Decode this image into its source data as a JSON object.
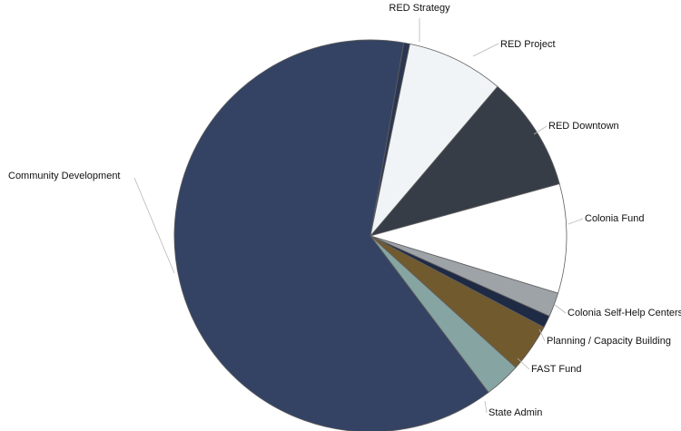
{
  "chart_data": {
    "type": "pie",
    "title": "",
    "legend": "none",
    "slices": [
      {
        "label": "RED Strategy",
        "value": 0.5,
        "color": "#2c3650"
      },
      {
        "label": "RED Project",
        "value": 8.0,
        "color": "#f1f4f6"
      },
      {
        "label": "RED Downtown",
        "value": 9.5,
        "color": "#373d47"
      },
      {
        "label": "Colonia Fund",
        "value": 9.0,
        "color": "#ffffff"
      },
      {
        "label": "Colonia Self-Help Centers",
        "value": 2.0,
        "color": "#9ea3a8"
      },
      {
        "label": "Planning / Capacity Building",
        "value": 1.0,
        "color": "#1f2a44"
      },
      {
        "label": "FAST Fund",
        "value": 4.0,
        "color": "#725a2f"
      },
      {
        "label": "State Admin",
        "value": 3.0,
        "color": "#86a4a1"
      },
      {
        "label": "Community Development",
        "value": 63.0,
        "color": "#344363"
      }
    ]
  }
}
